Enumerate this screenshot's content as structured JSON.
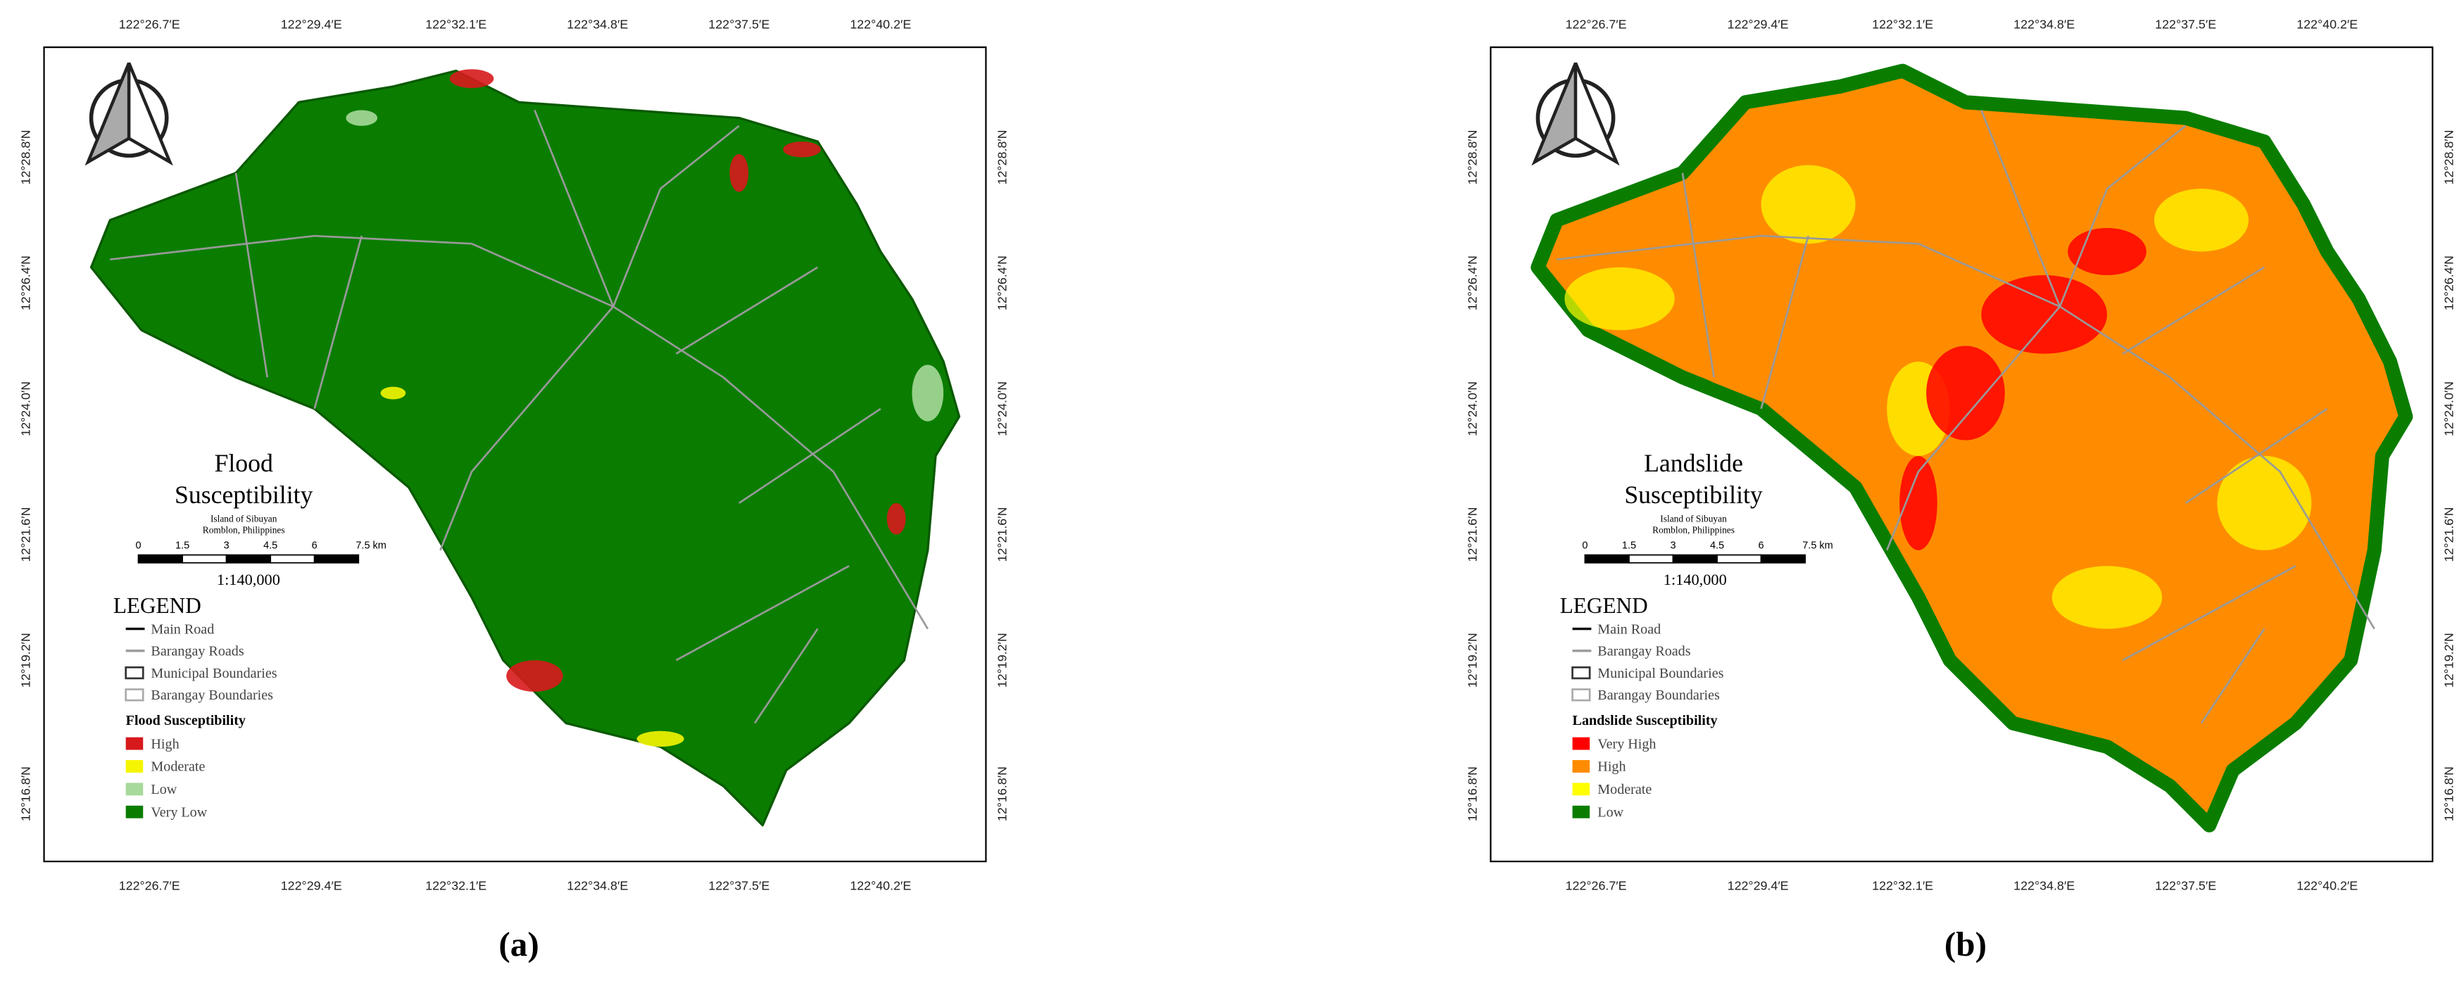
{
  "figure": {
    "panels": [
      {
        "label": "(a)",
        "title": [
          "Flood",
          "Susceptibility"
        ],
        "subtitle": [
          "Island of Sibuyan",
          "Romblon, Philippines"
        ],
        "scale_labels": [
          "0",
          "1.5",
          "3",
          "4.5",
          "6",
          "7.5 km"
        ],
        "scale_ratio": "1:140,000",
        "legend_title": "LEGEND",
        "legend_lines": [
          "Main Road",
          "Barangay Roads",
          "Municipal Boundaries",
          "Barangay Boundaries"
        ],
        "class_title": "Flood Susceptibility",
        "classes": [
          {
            "label": "High",
            "color": "#d7191c"
          },
          {
            "label": "Moderate",
            "color": "#f5f500"
          },
          {
            "label": "Low",
            "color": "#a6d99a"
          },
          {
            "label": "Very Low",
            "color": "#0a7d00"
          }
        ],
        "lon_labels": [
          "122°26.7′E",
          "122°29.4′E",
          "122°32.1′E",
          "122°34.8′E",
          "122°37.5′E",
          "122°40.2′E"
        ],
        "lat_labels": [
          "12°28.8′N",
          "12°26.4′N",
          "12°24.0′N",
          "12°21.6′N",
          "12°19.2′N",
          "12°16.8′N"
        ]
      },
      {
        "label": "(b)",
        "title": [
          "Landslide",
          "Susceptibility"
        ],
        "subtitle": [
          "Island of Sibuyan",
          "Romblon, Philippines"
        ],
        "scale_labels": [
          "0",
          "1.5",
          "3",
          "4.5",
          "6",
          "7.5 km"
        ],
        "scale_ratio": "1:140,000",
        "legend_title": "LEGEND",
        "legend_lines": [
          "Main Road",
          "Barangay Roads",
          "Municipal Boundaries",
          "Barangay Boundaries"
        ],
        "class_title": "Landslide Susceptibility",
        "classes": [
          {
            "label": "Very High",
            "color": "#ff0000"
          },
          {
            "label": "High",
            "color": "#ff8c00"
          },
          {
            "label": "Moderate",
            "color": "#ffff00"
          },
          {
            "label": "Low",
            "color": "#0a7d00"
          }
        ],
        "lon_labels": [
          "122°26.7′E",
          "122°29.4′E",
          "122°32.1′E",
          "122°34.8′E",
          "122°37.5′E",
          "122°40.2′E"
        ],
        "lat_labels": [
          "12°28.8′N",
          "12°26.4′N",
          "12°24.0′N",
          "12°21.6′N",
          "12°19.2′N",
          "12°16.8′N"
        ]
      }
    ]
  }
}
